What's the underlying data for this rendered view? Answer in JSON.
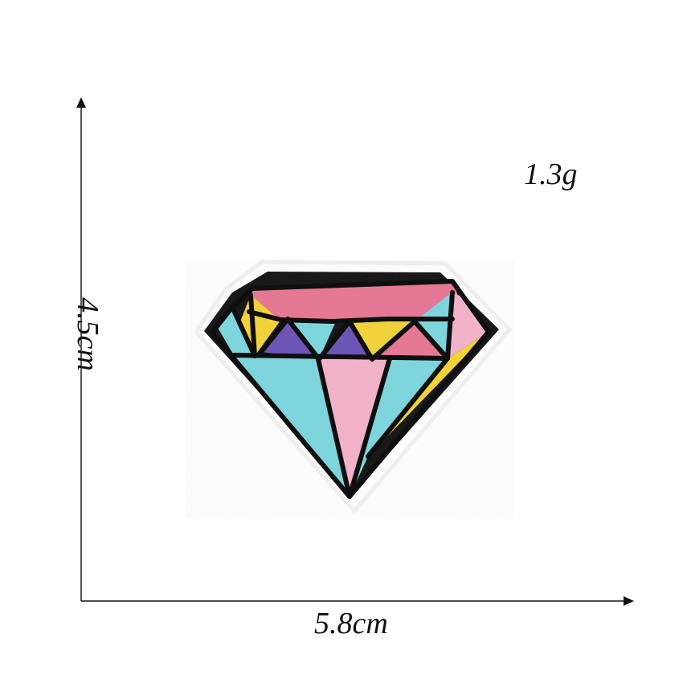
{
  "labels": {
    "weight": "1.3g",
    "width": "5.8cm",
    "height": "4.5cm"
  },
  "colors": {
    "ink": "#111111",
    "pink": "#e77a97",
    "light_pink": "#f4b4cb",
    "cyan": "#7fd7df",
    "yellow": "#f3d43a",
    "purple": "#6e58b8",
    "felt": "#ffffff",
    "outline": "#0f0f0f"
  },
  "icons": {
    "patch": "diamond-patch-illustration",
    "arrow_up": "arrow-up-icon",
    "arrow_right": "arrow-right-icon"
  }
}
